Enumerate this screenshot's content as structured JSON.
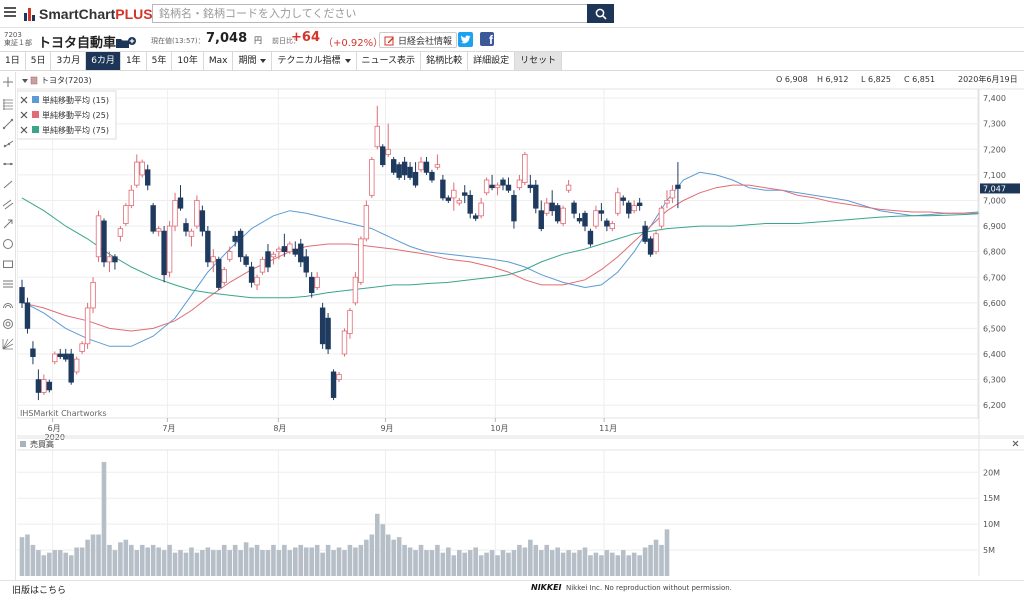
{
  "header": {
    "logo_smart": "SmartChart",
    "logo_plus": "PLUS",
    "search_placeholder": "銘柄名・銘柄コードを入力してください"
  },
  "stock": {
    "code": "7203",
    "market": "東証１部",
    "name": "トヨタ自動車",
    "current_label": "現在値(13:57)：",
    "current_value": "7,048",
    "current_unit": "円",
    "change_label": "前日比：",
    "change_value": "+64",
    "change_pct": "（+0.92%）",
    "nikkei_info_label": "日経会社情報"
  },
  "toolbar": {
    "periods": [
      "1日",
      "5日",
      "3カ月",
      "6カ月",
      "1年",
      "5年",
      "10年",
      "Max"
    ],
    "active_period": "6カ月",
    "period_menu": "期間",
    "technical_menu": "テクニカル指標",
    "news": "ニュース表示",
    "compare": "銘柄比較",
    "settings": "詳細設定",
    "reset": "リセット"
  },
  "chart_data": {
    "type": "candlestick",
    "symbol_label": "トヨタ(7203)",
    "ohlc_display": {
      "o": "O 6,908",
      "h": "H 6,912",
      "l": "L 6,825",
      "c": "C 6,851",
      "date": "2020年6月19日"
    },
    "legend": [
      "単純移動平均 (15)",
      "単純移動平均 (25)",
      "単純移動平均 (75)"
    ],
    "legend_colors": [
      "#5b9bd5",
      "#e06c75",
      "#3aa58c"
    ],
    "price_axis": [
      "7,400",
      "7,300",
      "7,200",
      "7,100",
      "7,000",
      "6,900",
      "6,800",
      "6,700",
      "6,600",
      "6,500",
      "6,400",
      "6,300",
      "6,200"
    ],
    "price_range": [
      6150,
      7420
    ],
    "last_price_label": "7,047",
    "month_labels": [
      "6月",
      "7月",
      "8月",
      "9月",
      "10月",
      "11月"
    ],
    "month_positions": [
      5.6,
      26.6,
      46.9,
      66.5,
      86.6,
      106.5
    ],
    "year_label": "2020",
    "watermark": "IHSMarkit Chartworks",
    "up_color": "#e06c75",
    "down_color": "#1f3a5f",
    "candles": [
      [
        6660,
        6690,
        6580,
        6600
      ],
      [
        6600,
        6620,
        6480,
        6500
      ],
      [
        6420,
        6450,
        6360,
        6390
      ],
      [
        6300,
        6340,
        6220,
        6250
      ],
      [
        6250,
        6320,
        6240,
        6300
      ],
      [
        6290,
        6300,
        6250,
        6260
      ],
      [
        6370,
        6410,
        6360,
        6400
      ],
      [
        6400,
        6420,
        6380,
        6390
      ],
      [
        6400,
        6420,
        6370,
        6380
      ],
      [
        6400,
        6420,
        6280,
        6290
      ],
      [
        6330,
        6390,
        6320,
        6380
      ],
      [
        6410,
        6450,
        6400,
        6440
      ],
      [
        6440,
        6600,
        6420,
        6580
      ],
      [
        6580,
        6700,
        6560,
        6680
      ],
      [
        6780,
        6960,
        6760,
        6940
      ],
      [
        6920,
        6930,
        6740,
        6760
      ],
      [
        6760,
        6800,
        6720,
        6780
      ],
      [
        6780,
        6790,
        6730,
        6760
      ],
      [
        6860,
        6900,
        6840,
        6890
      ],
      [
        6910,
        6990,
        6900,
        6980
      ],
      [
        6980,
        7060,
        6970,
        7040
      ],
      [
        7060,
        7180,
        7050,
        7150
      ],
      [
        7100,
        7160,
        7090,
        7150
      ],
      [
        7120,
        7140,
        7040,
        7060
      ],
      [
        6980,
        6990,
        6870,
        6880
      ],
      [
        6880,
        6900,
        6860,
        6890
      ],
      [
        6880,
        6900,
        6680,
        6710
      ],
      [
        6720,
        6920,
        6700,
        6900
      ],
      [
        6900,
        7030,
        6880,
        7000
      ],
      [
        7010,
        7060,
        6960,
        6970
      ],
      [
        6910,
        6930,
        6860,
        6880
      ],
      [
        6860,
        6890,
        6820,
        6880
      ],
      [
        6900,
        7020,
        6890,
        7000
      ],
      [
        6960,
        6980,
        6860,
        6880
      ],
      [
        6880,
        6900,
        6740,
        6760
      ],
      [
        6760,
        6810,
        6720,
        6780
      ],
      [
        6770,
        6780,
        6650,
        6660
      ],
      [
        6680,
        6740,
        6670,
        6730
      ],
      [
        6770,
        6820,
        6760,
        6800
      ],
      [
        6860,
        6880,
        6820,
        6840
      ],
      [
        6880,
        6890,
        6760,
        6780
      ],
      [
        6780,
        6790,
        6740,
        6750
      ],
      [
        6740,
        6760,
        6660,
        6680
      ],
      [
        6670,
        6710,
        6650,
        6700
      ],
      [
        6720,
        6780,
        6710,
        6770
      ],
      [
        6800,
        6830,
        6720,
        6740
      ],
      [
        6780,
        6800,
        6750,
        6790
      ],
      [
        6800,
        6820,
        6770,
        6810
      ],
      [
        6820,
        6870,
        6780,
        6800
      ],
      [
        6800,
        6840,
        6790,
        6830
      ],
      [
        6810,
        6840,
        6780,
        6790
      ],
      [
        6830,
        6850,
        6740,
        6760
      ],
      [
        6780,
        6810,
        6700,
        6720
      ],
      [
        6700,
        6720,
        6620,
        6640
      ],
      [
        6660,
        6720,
        6650,
        6700
      ],
      [
        6580,
        6600,
        6420,
        6440
      ],
      [
        6540,
        6560,
        6400,
        6420
      ],
      [
        6330,
        6340,
        6220,
        6230
      ],
      [
        6300,
        6330,
        6290,
        6320
      ],
      [
        6400,
        6500,
        6390,
        6490
      ],
      [
        6480,
        6580,
        6460,
        6570
      ],
      [
        6600,
        6720,
        6590,
        6700
      ],
      [
        6680,
        6860,
        6670,
        6850
      ],
      [
        6850,
        7000,
        6840,
        6980
      ],
      [
        7020,
        7170,
        7010,
        7160
      ],
      [
        7210,
        7370,
        7200,
        7290
      ],
      [
        7210,
        7220,
        7130,
        7140
      ],
      [
        7180,
        7300,
        7170,
        7200
      ],
      [
        7160,
        7170,
        7100,
        7110
      ],
      [
        7140,
        7150,
        7080,
        7090
      ],
      [
        7150,
        7170,
        7080,
        7100
      ],
      [
        7130,
        7150,
        7080,
        7090
      ],
      [
        7110,
        7150,
        7050,
        7060
      ],
      [
        7120,
        7170,
        7110,
        7150
      ],
      [
        7150,
        7170,
        7100,
        7110
      ],
      [
        7110,
        7120,
        7070,
        7080
      ],
      [
        7130,
        7180,
        7120,
        7140
      ],
      [
        7080,
        7100,
        7000,
        7010
      ],
      [
        7010,
        7020,
        6990,
        7000
      ],
      [
        7010,
        7070,
        6960,
        7040
      ],
      [
        6990,
        7010,
        6980,
        7000
      ],
      [
        7030,
        7060,
        6990,
        7020
      ],
      [
        7020,
        7040,
        6930,
        6950
      ],
      [
        6940,
        6950,
        6920,
        6930
      ],
      [
        6940,
        7010,
        6930,
        6990
      ],
      [
        7030,
        7090,
        7020,
        7080
      ],
      [
        7060,
        7100,
        7040,
        7050
      ],
      [
        7050,
        7070,
        7020,
        7060
      ],
      [
        7080,
        7090,
        7040,
        7060
      ],
      [
        7060,
        7090,
        7030,
        7040
      ],
      [
        7020,
        7040,
        6890,
        6920
      ],
      [
        7050,
        7100,
        7040,
        7080
      ],
      [
        7070,
        7190,
        7060,
        7180
      ],
      [
        7060,
        7100,
        7030,
        7050
      ],
      [
        7060,
        7080,
        6950,
        6970
      ],
      [
        6960,
        7000,
        6880,
        6890
      ],
      [
        6950,
        7010,
        6940,
        6990
      ],
      [
        6990,
        7040,
        6940,
        6960
      ],
      [
        6980,
        6990,
        6910,
        6920
      ],
      [
        6910,
        6980,
        6900,
        6970
      ],
      [
        7040,
        7080,
        7030,
        7060
      ],
      [
        6990,
        7000,
        6930,
        6950
      ],
      [
        6930,
        6950,
        6910,
        6920
      ],
      [
        6950,
        6960,
        6880,
        6900
      ],
      [
        6880,
        6890,
        6820,
        6830
      ],
      [
        6900,
        6980,
        6890,
        6960
      ],
      [
        6960,
        6990,
        6920,
        6950
      ],
      [
        6920,
        6930,
        6880,
        6900
      ],
      [
        6890,
        6920,
        6880,
        6910
      ],
      [
        6950,
        7050,
        6940,
        7030
      ],
      [
        7010,
        7020,
        6980,
        7000
      ],
      [
        6990,
        7000,
        6930,
        6950
      ],
      [
        6960,
        7000,
        6950,
        6980
      ],
      [
        6990,
        7010,
        6960,
        6980
      ],
      [
        6900,
        6920,
        6830,
        6840
      ],
      [
        6850,
        6860,
        6780,
        6790
      ],
      [
        6800,
        6880,
        6790,
        6870
      ],
      [
        6900,
        6980,
        6890,
        6970
      ],
      [
        6990,
        7040,
        6970,
        7000
      ],
      [
        7010,
        7060,
        6990,
        7040
      ],
      [
        7060,
        7150,
        6970,
        7047
      ]
    ],
    "sma15": [
      [
        6605,
        0
      ],
      [
        6560,
        4
      ],
      [
        6500,
        8
      ],
      [
        6460,
        12
      ],
      [
        6430,
        16
      ],
      [
        6430,
        20
      ],
      [
        6470,
        24
      ],
      [
        6540,
        28
      ],
      [
        6630,
        31
      ],
      [
        6720,
        34
      ],
      [
        6810,
        38
      ],
      [
        6890,
        42
      ],
      [
        6940,
        46
      ],
      [
        6960,
        49
      ],
      [
        6950,
        52
      ],
      [
        6930,
        56
      ],
      [
        6910,
        60
      ],
      [
        6890,
        64
      ],
      [
        6850,
        68
      ],
      [
        6820,
        71
      ],
      [
        6800,
        74
      ],
      [
        6790,
        78
      ],
      [
        6780,
        82
      ],
      [
        6770,
        86
      ],
      [
        6760,
        89
      ],
      [
        6740,
        92
      ],
      [
        6710,
        95
      ],
      [
        6680,
        99
      ],
      [
        6660,
        103
      ],
      [
        6670,
        106
      ],
      [
        6720,
        109
      ],
      [
        6800,
        112
      ],
      [
        6900,
        115
      ],
      [
        7000,
        118
      ],
      [
        7080,
        121
      ],
      [
        7110,
        124
      ],
      [
        7100,
        127
      ],
      [
        7080,
        130
      ],
      [
        7050,
        133
      ],
      [
        7040,
        136
      ],
      [
        7040,
        139
      ],
      [
        7030,
        142
      ],
      [
        7020,
        145
      ],
      [
        7010,
        148
      ],
      [
        7000,
        151
      ],
      [
        6980,
        154
      ],
      [
        6960,
        157
      ],
      [
        6950,
        160
      ],
      [
        6940,
        163
      ],
      [
        6945,
        166
      ],
      [
        6950,
        169
      ],
      [
        6950,
        172
      ],
      [
        6955,
        175
      ]
    ],
    "sma25": [
      [
        6600,
        0
      ],
      [
        6580,
        4
      ],
      [
        6550,
        8
      ],
      [
        6530,
        12
      ],
      [
        6500,
        16
      ],
      [
        6490,
        20
      ],
      [
        6500,
        24
      ],
      [
        6530,
        28
      ],
      [
        6570,
        31
      ],
      [
        6620,
        34
      ],
      [
        6680,
        38
      ],
      [
        6730,
        42
      ],
      [
        6770,
        46
      ],
      [
        6800,
        49
      ],
      [
        6820,
        52
      ],
      [
        6830,
        56
      ],
      [
        6830,
        60
      ],
      [
        6820,
        64
      ],
      [
        6810,
        68
      ],
      [
        6800,
        71
      ],
      [
        6790,
        74
      ],
      [
        6770,
        78
      ],
      [
        6760,
        82
      ],
      [
        6740,
        86
      ],
      [
        6720,
        89
      ],
      [
        6690,
        92
      ],
      [
        6670,
        95
      ],
      [
        6670,
        99
      ],
      [
        6690,
        103
      ],
      [
        6730,
        106
      ],
      [
        6780,
        109
      ],
      [
        6840,
        112
      ],
      [
        6900,
        115
      ],
      [
        6960,
        118
      ],
      [
        7000,
        121
      ],
      [
        7030,
        124
      ],
      [
        7050,
        127
      ],
      [
        7060,
        130
      ],
      [
        7060,
        133
      ],
      [
        7050,
        136
      ],
      [
        7040,
        139
      ],
      [
        7020,
        142
      ],
      [
        7010,
        145
      ],
      [
        6995,
        148
      ],
      [
        6985,
        151
      ],
      [
        6975,
        154
      ],
      [
        6965,
        157
      ],
      [
        6960,
        160
      ],
      [
        6955,
        163
      ],
      [
        6955,
        166
      ],
      [
        6950,
        169
      ],
      [
        6950,
        172
      ],
      [
        6950,
        175
      ]
    ],
    "sma75": [
      [
        7010,
        0
      ],
      [
        6960,
        4
      ],
      [
        6900,
        8
      ],
      [
        6850,
        12
      ],
      [
        6790,
        16
      ],
      [
        6740,
        20
      ],
      [
        6700,
        24
      ],
      [
        6670,
        28
      ],
      [
        6650,
        31
      ],
      [
        6640,
        34
      ],
      [
        6630,
        38
      ],
      [
        6620,
        42
      ],
      [
        6620,
        46
      ],
      [
        6620,
        49
      ],
      [
        6625,
        52
      ],
      [
        6640,
        56
      ],
      [
        6650,
        60
      ],
      [
        6660,
        64
      ],
      [
        6670,
        68
      ],
      [
        6670,
        71
      ],
      [
        6675,
        74
      ],
      [
        6680,
        78
      ],
      [
        6690,
        82
      ],
      [
        6700,
        86
      ],
      [
        6710,
        89
      ],
      [
        6730,
        92
      ],
      [
        6760,
        95
      ],
      [
        6790,
        99
      ],
      [
        6810,
        103
      ],
      [
        6830,
        106
      ],
      [
        6850,
        109
      ],
      [
        6870,
        112
      ],
      [
        6880,
        115
      ],
      [
        6890,
        118
      ],
      [
        6895,
        121
      ],
      [
        6900,
        124
      ],
      [
        6900,
        127
      ],
      [
        6900,
        130
      ],
      [
        6905,
        133
      ],
      [
        6910,
        136
      ],
      [
        6910,
        139
      ],
      [
        6910,
        142
      ],
      [
        6915,
        145
      ],
      [
        6920,
        148
      ],
      [
        6925,
        151
      ],
      [
        6930,
        154
      ],
      [
        6935,
        157
      ],
      [
        6938,
        160
      ],
      [
        6940,
        163
      ],
      [
        6940,
        166
      ],
      [
        6942,
        169
      ],
      [
        6945,
        172
      ],
      [
        6948,
        175
      ]
    ],
    "volume_label": "売買高",
    "volume_axis": [
      "20M",
      "15M",
      "10M",
      "5M"
    ],
    "volume_color": "#b6bfc8",
    "volumes": [
      7.5,
      8,
      6,
      5,
      4,
      4.5,
      5,
      5,
      4.5,
      4,
      5.5,
      5.5,
      7,
      8,
      8,
      22,
      6,
      5,
      6.5,
      7,
      6,
      5,
      6,
      5.5,
      6,
      5.5,
      5,
      6,
      4.5,
      5,
      4.5,
      5.5,
      4.5,
      5,
      5.5,
      5,
      5,
      6,
      5,
      6,
      5,
      6.5,
      5.5,
      6,
      5,
      5,
      6,
      5,
      6,
      5,
      5.5,
      6,
      5.5,
      5.5,
      6,
      4.5,
      6,
      5,
      5.5,
      5,
      6,
      5.5,
      6,
      7,
      8,
      12,
      10,
      8,
      7,
      7.5,
      6,
      5.5,
      5,
      6,
      5,
      5,
      6,
      4.5,
      5.5,
      4,
      5,
      4.5,
      5,
      5.5,
      4,
      4.5,
      5,
      4,
      5,
      4.5,
      5,
      6,
      5.5,
      7,
      6,
      5,
      6,
      5,
      5.5,
      4.5,
      5,
      4.5,
      5,
      5.5,
      4,
      4.5,
      4,
      5,
      4.5,
      4,
      5,
      4,
      4.5,
      4,
      5.5,
      6,
      7,
      6,
      9
    ]
  },
  "footer": {
    "old_version": "旧版はこちら",
    "nikkei": "NIKKEI",
    "copyright": "Nikkei Inc. No reproduction without permission."
  }
}
